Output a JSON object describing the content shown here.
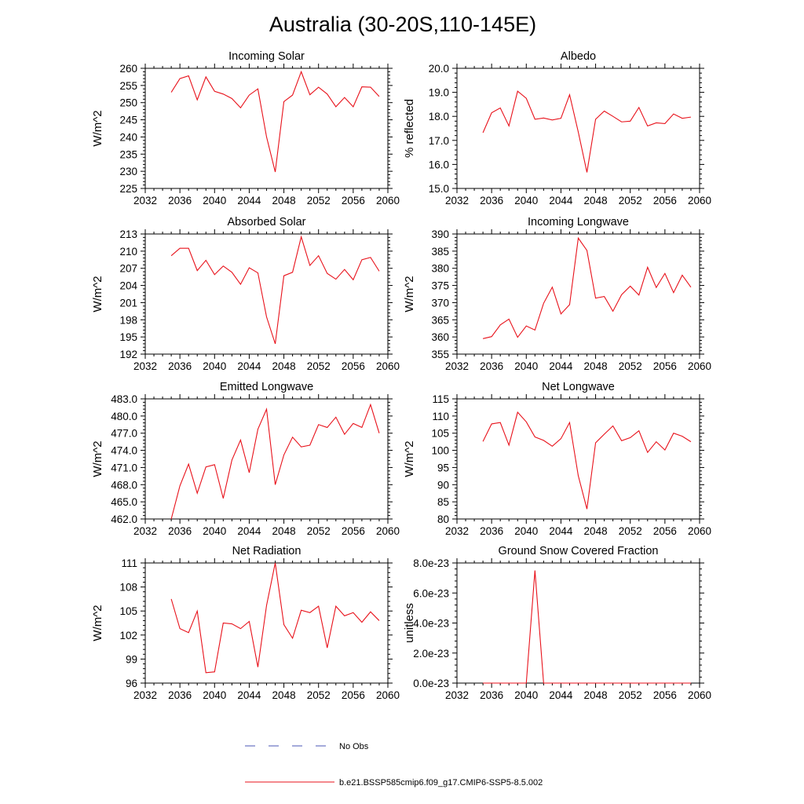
{
  "title": "Australia (30-20S,110-145E)",
  "colors": {
    "model": "#e8121b",
    "obs": "#4a55b5"
  },
  "legend": {
    "obs_label": "No Obs",
    "model_label": "b.e21.BSSP585cmip6.f09_g17.CMIP6-SSP5-8.5.002"
  },
  "chart_data": [
    {
      "type": "line",
      "title": "Incoming Solar",
      "ylabel": "W/m^2",
      "xlim": [
        2032,
        2060
      ],
      "xticks": [
        2032,
        2036,
        2040,
        2044,
        2048,
        2052,
        2056,
        2060
      ],
      "ylim": [
        225,
        260
      ],
      "yticks": [
        225,
        230,
        235,
        240,
        245,
        250,
        255,
        260
      ],
      "ytick_labels": [
        "225",
        "230",
        "235",
        "240",
        "245",
        "250",
        "255",
        "260"
      ],
      "x": [
        2035,
        2036,
        2037,
        2038,
        2039,
        2040,
        2041,
        2042,
        2043,
        2044,
        2045,
        2046,
        2047,
        2048,
        2049,
        2050,
        2051,
        2052,
        2053,
        2054,
        2055,
        2056,
        2057,
        2058,
        2059
      ],
      "values": [
        253.0,
        257.0,
        257.8,
        250.8,
        257.5,
        253.3,
        252.5,
        251.2,
        248.5,
        252.2,
        254.0,
        240.0,
        229.8,
        250.3,
        252.2,
        259.0,
        252.3,
        254.5,
        252.5,
        248.8,
        251.5,
        248.8,
        254.6,
        254.5,
        251.8
      ]
    },
    {
      "type": "line",
      "title": "Albedo",
      "ylabel": "% reflected",
      "xlim": [
        2032,
        2060
      ],
      "xticks": [
        2032,
        2036,
        2040,
        2044,
        2048,
        2052,
        2056,
        2060
      ],
      "ylim": [
        15,
        20
      ],
      "yticks": [
        15,
        16,
        17,
        18,
        19,
        20
      ],
      "ytick_labels": [
        "15.0",
        "16.0",
        "17.0",
        "18.0",
        "19.0",
        "20.0"
      ],
      "x": [
        2035,
        2036,
        2037,
        2038,
        2039,
        2040,
        2041,
        2042,
        2043,
        2044,
        2045,
        2046,
        2047,
        2048,
        2049,
        2050,
        2051,
        2052,
        2053,
        2054,
        2055,
        2056,
        2057,
        2058,
        2059
      ],
      "values": [
        17.32,
        18.15,
        18.35,
        17.6,
        19.05,
        18.75,
        17.88,
        17.93,
        17.85,
        17.92,
        18.9,
        17.35,
        15.67,
        17.88,
        18.22,
        18.0,
        17.77,
        17.8,
        18.37,
        17.6,
        17.73,
        17.7,
        18.1,
        17.92,
        17.97
      ]
    },
    {
      "type": "line",
      "title": "Absorbed Solar",
      "ylabel": "W/m^2",
      "xlim": [
        2032,
        2060
      ],
      "xticks": [
        2032,
        2036,
        2040,
        2044,
        2048,
        2052,
        2056,
        2060
      ],
      "ylim": [
        192,
        213
      ],
      "yticks": [
        192,
        195,
        198,
        201,
        204,
        207,
        210,
        213
      ],
      "ytick_labels": [
        "192",
        "195",
        "198",
        "201",
        "204",
        "207",
        "210",
        "213"
      ],
      "x": [
        2035,
        2036,
        2037,
        2038,
        2039,
        2040,
        2041,
        2042,
        2043,
        2044,
        2045,
        2046,
        2047,
        2048,
        2049,
        2050,
        2051,
        2052,
        2053,
        2054,
        2055,
        2056,
        2057,
        2058,
        2059
      ],
      "values": [
        209.2,
        210.5,
        210.5,
        206.6,
        208.4,
        205.9,
        207.4,
        206.3,
        204.2,
        207.1,
        206.2,
        198.5,
        193.8,
        205.7,
        206.3,
        212.5,
        207.5,
        209.2,
        206.1,
        205.1,
        206.8,
        205.0,
        208.5,
        208.9,
        206.5
      ]
    },
    {
      "type": "line",
      "title": "Incoming Longwave",
      "ylabel": "W/m^2",
      "xlim": [
        2032,
        2060
      ],
      "xticks": [
        2032,
        2036,
        2040,
        2044,
        2048,
        2052,
        2056,
        2060
      ],
      "ylim": [
        355,
        390
      ],
      "yticks": [
        355,
        360,
        365,
        370,
        375,
        380,
        385,
        390
      ],
      "ytick_labels": [
        "355",
        "360",
        "365",
        "370",
        "375",
        "380",
        "385",
        "390"
      ],
      "x": [
        2035,
        2036,
        2037,
        2038,
        2039,
        2040,
        2041,
        2042,
        2043,
        2044,
        2045,
        2046,
        2047,
        2048,
        2049,
        2050,
        2051,
        2052,
        2053,
        2054,
        2055,
        2056,
        2057,
        2058,
        2059
      ],
      "values": [
        359.5,
        360.1,
        363.5,
        365.2,
        359.9,
        363.2,
        362.0,
        369.8,
        374.5,
        366.7,
        369.4,
        388.8,
        385.2,
        371.3,
        371.8,
        367.5,
        372.3,
        374.8,
        372.2,
        380.3,
        374.4,
        378.5,
        372.9,
        378.0,
        374.5
      ]
    },
    {
      "type": "line",
      "title": "Emitted Longwave",
      "ylabel": "W/m^2",
      "xlim": [
        2032,
        2060
      ],
      "xticks": [
        2032,
        2036,
        2040,
        2044,
        2048,
        2052,
        2056,
        2060
      ],
      "ylim": [
        462,
        483
      ],
      "yticks": [
        462,
        465,
        468,
        471,
        474,
        477,
        480,
        483
      ],
      "ytick_labels": [
        "462.0",
        "465.0",
        "468.0",
        "471.0",
        "474.0",
        "477.0",
        "480.0",
        "483.0"
      ],
      "x": [
        2035,
        2036,
        2037,
        2038,
        2039,
        2040,
        2041,
        2042,
        2043,
        2044,
        2045,
        2046,
        2047,
        2048,
        2049,
        2050,
        2051,
        2052,
        2053,
        2054,
        2055,
        2056,
        2057,
        2058,
        2059
      ],
      "values": [
        462.0,
        467.8,
        471.6,
        466.5,
        471.1,
        471.5,
        465.6,
        472.3,
        475.8,
        470.1,
        477.7,
        481.2,
        468.0,
        473.2,
        476.3,
        474.6,
        474.9,
        478.5,
        478.0,
        479.8,
        476.8,
        478.7,
        478.0,
        482.0,
        477.0
      ]
    },
    {
      "type": "line",
      "title": "Net Longwave",
      "ylabel": "W/m^2",
      "xlim": [
        2032,
        2060
      ],
      "xticks": [
        2032,
        2036,
        2040,
        2044,
        2048,
        2052,
        2056,
        2060
      ],
      "ylim": [
        80,
        115
      ],
      "yticks": [
        80,
        85,
        90,
        95,
        100,
        105,
        110,
        115
      ],
      "ytick_labels": [
        "80",
        "85",
        "90",
        "95",
        "100",
        "105",
        "110",
        "115"
      ],
      "x": [
        2035,
        2036,
        2037,
        2038,
        2039,
        2040,
        2041,
        2042,
        2043,
        2044,
        2045,
        2046,
        2047,
        2048,
        2049,
        2050,
        2051,
        2052,
        2053,
        2054,
        2055,
        2056,
        2057,
        2058,
        2059
      ],
      "values": [
        102.6,
        107.7,
        108.1,
        101.5,
        111.1,
        108.3,
        103.9,
        102.9,
        101.2,
        103.4,
        108.1,
        92.6,
        82.9,
        102.2,
        104.7,
        107.1,
        102.8,
        103.7,
        105.7,
        99.4,
        102.5,
        100.1,
        105.0,
        104.1,
        102.5
      ]
    },
    {
      "type": "line",
      "title": "Net Radiation",
      "ylabel": "W/m^2",
      "xlim": [
        2032,
        2060
      ],
      "xticks": [
        2032,
        2036,
        2040,
        2044,
        2048,
        2052,
        2056,
        2060
      ],
      "ylim": [
        96,
        111
      ],
      "yticks": [
        96,
        99,
        102,
        105,
        108,
        111
      ],
      "ytick_labels": [
        "96",
        "99",
        "102",
        "105",
        "108",
        "111"
      ],
      "x": [
        2035,
        2036,
        2037,
        2038,
        2039,
        2040,
        2041,
        2042,
        2043,
        2044,
        2045,
        2046,
        2047,
        2048,
        2049,
        2050,
        2051,
        2052,
        2053,
        2054,
        2055,
        2056,
        2057,
        2058,
        2059
      ],
      "values": [
        106.5,
        102.8,
        102.3,
        105.0,
        97.3,
        97.4,
        103.5,
        103.4,
        102.8,
        103.7,
        98.0,
        105.7,
        111.0,
        103.3,
        101.6,
        105.1,
        104.8,
        105.6,
        100.4,
        105.6,
        104.4,
        104.8,
        103.6,
        104.9,
        103.8
      ]
    },
    {
      "type": "line",
      "title": "Ground Snow Covered Fraction",
      "ylabel": "unitless",
      "xlim": [
        2032,
        2060
      ],
      "xticks": [
        2032,
        2036,
        2040,
        2044,
        2048,
        2052,
        2056,
        2060
      ],
      "ylim": [
        0,
        8e-23
      ],
      "yticks": [
        0,
        2e-23,
        4e-23,
        6e-23,
        8e-23
      ],
      "ytick_labels": [
        "0.0e-23",
        "2.0e-23",
        "4.0e-23",
        "6.0e-23",
        "8.0e-23"
      ],
      "x": [
        2035,
        2036,
        2037,
        2038,
        2039,
        2040,
        2041,
        2042,
        2043,
        2044,
        2045,
        2046,
        2047,
        2048,
        2049,
        2050,
        2051,
        2052,
        2053,
        2054,
        2055,
        2056,
        2057,
        2058,
        2059
      ],
      "values": [
        0,
        0,
        0,
        0,
        0,
        0,
        7.5e-23,
        0,
        0,
        0,
        0,
        0,
        0,
        0,
        0,
        0,
        0,
        0,
        0,
        0,
        0,
        0,
        0,
        0,
        0
      ]
    }
  ]
}
